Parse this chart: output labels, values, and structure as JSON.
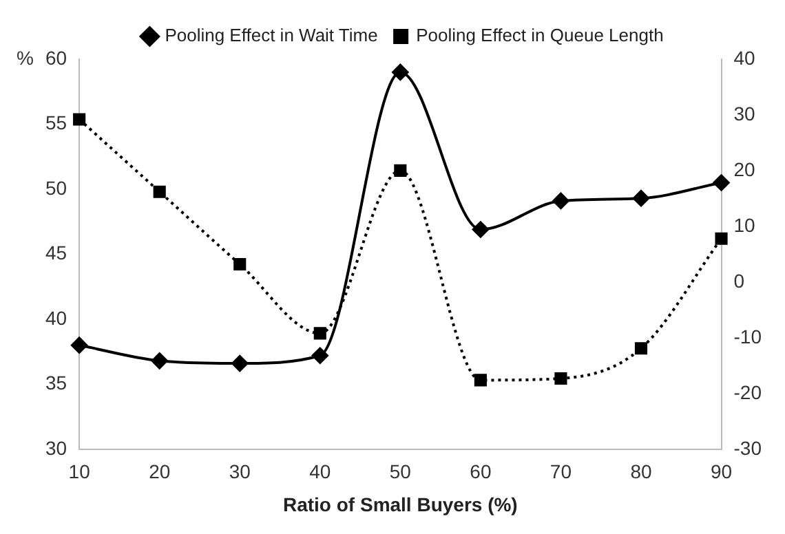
{
  "chart_data": {
    "type": "line",
    "xlabel": "Ratio of Small Buyers (%)",
    "ylabel": "%",
    "categories": [
      "10",
      "20",
      "30",
      "40",
      "50",
      "60",
      "70",
      "80",
      "90"
    ],
    "series": [
      {
        "name": "Pooling Effect in Wait Time",
        "color": "#000000",
        "marker": "diamond",
        "line_style": "solid",
        "values": [
          38,
          36.8,
          36.6,
          37.2,
          59,
          46.9,
          49.1,
          49.3,
          50.5
        ]
      },
      {
        "name": "Pooling Effect in Queue Length",
        "color": "#000000",
        "marker": "square",
        "line_style": "dotted",
        "axis": "y2",
        "values": [
          29.2,
          16.2,
          3.2,
          -9.2,
          20,
          -17.6,
          -17.3,
          -11.9,
          7.8
        ]
      }
    ],
    "ylim": [
      30,
      60
    ],
    "yticks": [
      30,
      35,
      40,
      45,
      50,
      55,
      60
    ],
    "y2lim": [
      -30,
      40
    ],
    "y2ticks": [
      -30,
      -20,
      -10,
      0,
      10,
      20,
      30,
      40
    ],
    "grid": false,
    "legend": "top"
  }
}
